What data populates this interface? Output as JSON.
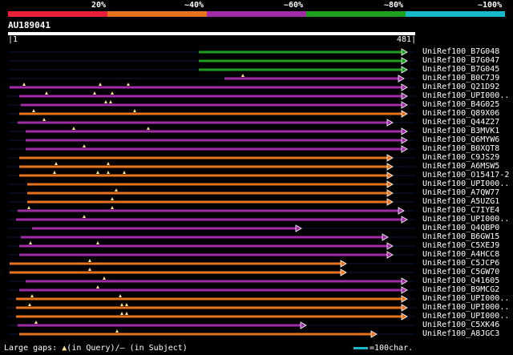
{
  "legend": {
    "labels": [
      "20%",
      "~40%",
      "~60%",
      "~80%",
      "~100%"
    ],
    "colors": [
      "#e8203a",
      "#e8731e",
      "#a02ca8",
      "#1ea01e",
      "#17b8c8"
    ]
  },
  "query": {
    "id": "AU189041",
    "start": "1",
    "end": "481"
  },
  "hits": [
    {
      "label": "UniRef100_B7G048",
      "color": "#1ea01e",
      "start": 248,
      "end": 508,
      "tris": []
    },
    {
      "label": "UniRef100_B7G047",
      "color": "#1ea01e",
      "start": 248,
      "end": 508,
      "tris": []
    },
    {
      "label": "UniRef100_B7G045",
      "color": "#1ea01e",
      "start": 248,
      "end": 508,
      "tris": []
    },
    {
      "label": "UniRef100_B0C7J9",
      "color": "#a02ca8",
      "start": 280,
      "end": 504,
      "tris": [
        303
      ]
    },
    {
      "label": "UniRef100_Q21D92",
      "color": "#a02ca8",
      "start": 12,
      "end": 508,
      "tris": [
        30,
        125,
        160
      ]
    },
    {
      "label": "UniRef100_UPI000..",
      "color": "#a02ca8",
      "start": 24,
      "end": 508,
      "tris": [
        58,
        118,
        140
      ]
    },
    {
      "label": "UniRef100_B4G025",
      "color": "#a02ca8",
      "start": 26,
      "end": 508,
      "tris": [
        132,
        138
      ]
    },
    {
      "label": "UniRef100_Q89X06",
      "color": "#e8731e",
      "start": 24,
      "end": 508,
      "tris": [
        42,
        168
      ]
    },
    {
      "label": "UniRef100_Q44Z27",
      "color": "#a02ca8",
      "start": 22,
      "end": 490,
      "tris": [
        55
      ]
    },
    {
      "label": "UniRef100_B3MVK1",
      "color": "#a02ca8",
      "start": 32,
      "end": 508,
      "tris": [
        92,
        185
      ]
    },
    {
      "label": "UniRef100_Q6MYW6",
      "color": "#a02ca8",
      "start": 32,
      "end": 508,
      "tris": []
    },
    {
      "label": "UniRef100_B0XQT8",
      "color": "#a02ca8",
      "start": 32,
      "end": 508,
      "tris": [
        105
      ]
    },
    {
      "label": "UniRef100_C9JS29",
      "color": "#e8731e",
      "start": 24,
      "end": 490,
      "tris": []
    },
    {
      "label": "UniRef100_A6MSW5",
      "color": "#e8731e",
      "start": 24,
      "end": 490,
      "tris": [
        70,
        135
      ]
    },
    {
      "label": "UniRef100_O15417-2",
      "color": "#e8731e",
      "start": 24,
      "end": 490,
      "tris": [
        68,
        122,
        135,
        155
      ]
    },
    {
      "label": "UniRef100_UPI000..",
      "color": "#e8731e",
      "start": 34,
      "end": 490,
      "tris": []
    },
    {
      "label": "UniRef100_A7QW77",
      "color": "#e8731e",
      "start": 34,
      "end": 490,
      "tris": [
        145
      ]
    },
    {
      "label": "UniRef100_A5UZG1",
      "color": "#e8731e",
      "start": 34,
      "end": 490,
      "tris": [
        140
      ]
    },
    {
      "label": "UniRef100_C7IYE4",
      "color": "#a02ca8",
      "start": 22,
      "end": 504,
      "tris": [
        36,
        140
      ]
    },
    {
      "label": "UniRef100_UPI000..",
      "color": "#a02ca8",
      "start": 20,
      "end": 508,
      "tris": [
        105
      ]
    },
    {
      "label": "UniRef100_Q4QBP0",
      "color": "#a02ca8",
      "start": 40,
      "end": 376,
      "tris": []
    },
    {
      "label": "UniRef100_B6GW15",
      "color": "#a02ca8",
      "start": 26,
      "end": 484,
      "tris": []
    },
    {
      "label": "UniRef100_C5XEJ9",
      "color": "#a02ca8",
      "start": 24,
      "end": 490,
      "tris": [
        38,
        122
      ]
    },
    {
      "label": "UniRef100_A4HCC8",
      "color": "#a02ca8",
      "start": 24,
      "end": 490,
      "tris": []
    },
    {
      "label": "UniRef100_C5JCP6",
      "color": "#e8731e",
      "start": 12,
      "end": 432,
      "tris": [
        112
      ]
    },
    {
      "label": "UniRef100_C5GW70",
      "color": "#e8731e",
      "start": 12,
      "end": 432,
      "tris": [
        112
      ]
    },
    {
      "label": "UniRef100_Q41605",
      "color": "#a02ca8",
      "start": 32,
      "end": 508,
      "tris": [
        130
      ]
    },
    {
      "label": "UniRef100_B9MCG2",
      "color": "#a02ca8",
      "start": 24,
      "end": 508,
      "tris": [
        122
      ]
    },
    {
      "label": "UniRef100_UPI000..",
      "color": "#e8731e",
      "start": 20,
      "end": 508,
      "tris": [
        40,
        150
      ]
    },
    {
      "label": "UniRef100_UPI000..",
      "color": "#e8731e",
      "start": 20,
      "end": 508,
      "tris": [
        37,
        152,
        158
      ]
    },
    {
      "label": "UniRef100_UPI000..",
      "color": "#e8731e",
      "start": 20,
      "end": 508,
      "tris": [
        152,
        158
      ]
    },
    {
      "label": "UniRef100_C5XK46",
      "color": "#a02ca8",
      "start": 22,
      "end": 382,
      "tris": [
        45
      ]
    },
    {
      "label": "UniRef100_A8JGC3",
      "color": "#e8731e",
      "start": 24,
      "end": 470,
      "tris": [
        146
      ]
    }
  ],
  "footer": {
    "large_gaps": "Large gaps:",
    "query_tri": "▲",
    "in_query": "(in Query)/",
    "subject_dash": "–",
    "in_subject": " (in Subject)",
    "scale_text": "=100char."
  }
}
